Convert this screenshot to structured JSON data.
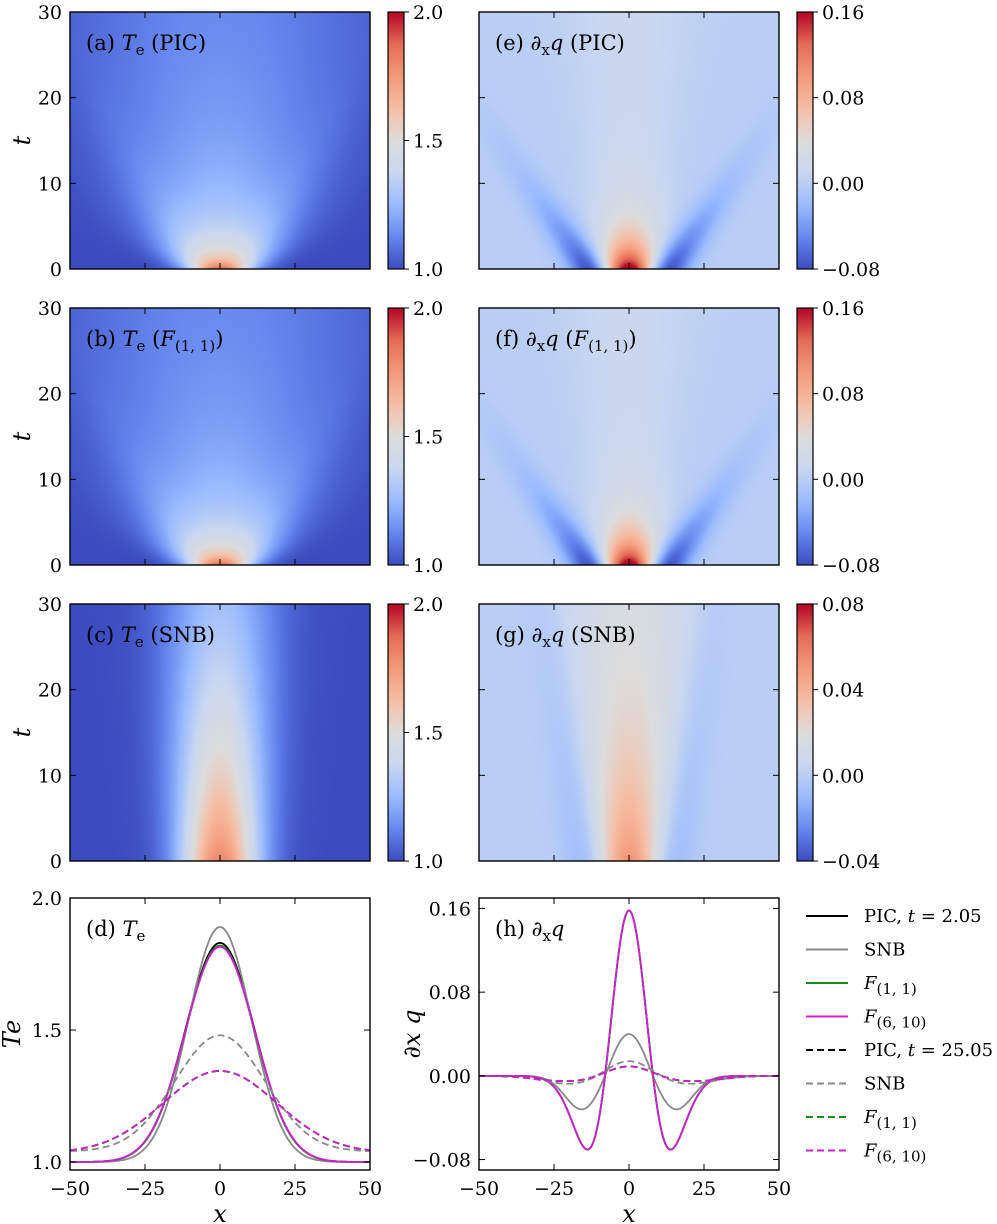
{
  "chart_data": [
    {
      "panel": "a",
      "type": "heatmap",
      "title": "(a) T_e (PIC)",
      "title_parts": [
        "(a) ",
        "T",
        "e",
        " (PIC)"
      ],
      "field": "Te",
      "model": "PIC",
      "xlim": [
        -50,
        50
      ],
      "ylim": [
        0,
        30
      ],
      "yticks": [
        "0",
        "10",
        "20",
        "30"
      ],
      "ylabel": "t",
      "colorbar": {
        "range": [
          1.0,
          2.0
        ],
        "ticks": [
          "1.0",
          "1.5",
          "2.0"
        ]
      }
    },
    {
      "panel": "b",
      "type": "heatmap",
      "title": "(b) T_e (F(1,1))",
      "title_parts": [
        "(b) ",
        "T",
        "e",
        " (",
        "F",
        "(1, 1)",
        ")"
      ],
      "field": "Te",
      "model": "F11",
      "xlim": [
        -50,
        50
      ],
      "ylim": [
        0,
        30
      ],
      "yticks": [
        "0",
        "10",
        "20",
        "30"
      ],
      "ylabel": "t",
      "colorbar": {
        "range": [
          1.0,
          2.0
        ],
        "ticks": [
          "1.0",
          "1.5",
          "2.0"
        ]
      }
    },
    {
      "panel": "c",
      "type": "heatmap",
      "title": "(c) T_e (SNB)",
      "title_parts": [
        "(c) ",
        "T",
        "e",
        " (SNB)"
      ],
      "field": "Te",
      "model": "SNB",
      "xlim": [
        -50,
        50
      ],
      "ylim": [
        0,
        30
      ],
      "yticks": [
        "0",
        "10",
        "20",
        "30"
      ],
      "ylabel": "t",
      "colorbar": {
        "range": [
          1.0,
          2.0
        ],
        "ticks": [
          "1.0",
          "1.5",
          "2.0"
        ]
      }
    },
    {
      "panel": "e",
      "type": "heatmap",
      "title": "(e) ∂_x q (PIC)",
      "title_parts": [
        "(e) ∂",
        "x",
        "q",
        " (PIC)"
      ],
      "field": "dq",
      "model": "PIC",
      "xlim": [
        -50,
        50
      ],
      "ylim": [
        0,
        30
      ],
      "colorbar": {
        "range": [
          -0.08,
          0.16
        ],
        "ticks": [
          "−0.08",
          "0.00",
          "0.08",
          "0.16"
        ]
      }
    },
    {
      "panel": "f",
      "type": "heatmap",
      "title": "(f) ∂_x q (F(1,1))",
      "title_parts": [
        "(f) ∂",
        "x",
        "q",
        " (",
        "F",
        "(1, 1)",
        ")"
      ],
      "field": "dq",
      "model": "F11",
      "xlim": [
        -50,
        50
      ],
      "ylim": [
        0,
        30
      ],
      "colorbar": {
        "range": [
          -0.08,
          0.16
        ],
        "ticks": [
          "−0.08",
          "0.00",
          "0.08",
          "0.16"
        ]
      }
    },
    {
      "panel": "g",
      "type": "heatmap",
      "title": "(g) ∂_x q (SNB)",
      "title_parts": [
        "(g) ∂",
        "x",
        "q",
        " (SNB)"
      ],
      "field": "dq",
      "model": "SNB",
      "xlim": [
        -50,
        50
      ],
      "ylim": [
        0,
        30
      ],
      "colorbar": {
        "range": [
          -0.04,
          0.08
        ],
        "ticks": [
          "−0.04",
          "0.00",
          "0.04",
          "0.08"
        ]
      }
    },
    {
      "panel": "d",
      "type": "line",
      "title": "(d) T_e",
      "title_parts": [
        "(d) ",
        "T",
        "e"
      ],
      "xlim": [
        -50,
        50
      ],
      "ylim": [
        0.97,
        2.0
      ],
      "xticks": [
        "−50",
        "−25",
        "0",
        "25",
        "50"
      ],
      "yticks": [
        1.0,
        1.5,
        2.0
      ],
      "ytick_labels": [
        "1.0",
        "1.5",
        "2.0"
      ],
      "xlabel": "x",
      "ylabel": "T_e",
      "series": [
        {
          "name": "PIC, t = 2.05",
          "color": "#000000",
          "dash": "solid",
          "peak": 1.83,
          "base": 1.0,
          "width": 11.5
        },
        {
          "name": "SNB",
          "color": "#888888",
          "dash": "solid",
          "peak": 1.89,
          "base": 1.0,
          "width": 10.5
        },
        {
          "name": "F(1,1)",
          "color": "#1a8c1a",
          "dash": "solid",
          "peak": 1.82,
          "base": 1.0,
          "width": 11.5
        },
        {
          "name": "F(6,10)",
          "color": "#cc22cc",
          "dash": "solid",
          "peak": 1.815,
          "base": 1.0,
          "width": 11.6
        },
        {
          "name": "PIC, t = 25.05",
          "color": "#000000",
          "dash": "dashed",
          "peak": 1.345,
          "base": 1.035,
          "width": 19.0
        },
        {
          "name": "SNB",
          "color": "#888888",
          "dash": "dashed",
          "peak": 1.48,
          "base": 1.04,
          "width": 15.0
        },
        {
          "name": "F(1,1)",
          "color": "#1a8c1a",
          "dash": "dashed",
          "peak": 1.345,
          "base": 1.035,
          "width": 19.0
        },
        {
          "name": "F(6,10)",
          "color": "#cc22cc",
          "dash": "dashed",
          "peak": 1.345,
          "base": 1.035,
          "width": 19.0
        }
      ]
    },
    {
      "panel": "h",
      "type": "line",
      "title": "(h) ∂_x q",
      "title_parts": [
        "(h) ∂",
        "x",
        "q"
      ],
      "xlim": [
        -50,
        50
      ],
      "ylim": [
        -0.09,
        0.17
      ],
      "xticks": [
        "−50",
        "−25",
        "0",
        "25",
        "50"
      ],
      "yticks": [
        -0.08,
        0.0,
        0.08,
        0.16
      ],
      "ytick_labels": [
        "−0.08",
        "0.00",
        "0.08",
        "0.16"
      ],
      "xlabel": "x",
      "ylabel": "∂_x q",
      "series": [
        {
          "name": "PIC, t = 2.05",
          "color": "#000000",
          "dash": "solid",
          "amp": 0.158,
          "width": 8.0
        },
        {
          "name": "SNB",
          "color": "#888888",
          "dash": "solid",
          "amp": 0.04,
          "width": 8.5,
          "tail": -0.015,
          "tail_center": 17.0,
          "tail_width": 7.0
        },
        {
          "name": "F(1,1)",
          "color": "#1a8c1a",
          "dash": "solid",
          "amp": 0.158,
          "width": 8.0
        },
        {
          "name": "F(6,10)",
          "color": "#cc22cc",
          "dash": "solid",
          "amp": 0.158,
          "width": 8.0
        },
        {
          "name": "PIC, t = 25.05",
          "color": "#000000",
          "dash": "dashed",
          "amp": 0.009,
          "width": 11.0,
          "tail": -0.002,
          "tail_center": 28.0,
          "tail_width": 10.0
        },
        {
          "name": "SNB",
          "color": "#888888",
          "dash": "dashed",
          "amp": 0.014,
          "width": 11.0,
          "tail": -0.002,
          "tail_center": 26.0,
          "tail_width": 10.0
        },
        {
          "name": "F(1,1)",
          "color": "#1a8c1a",
          "dash": "dashed",
          "amp": 0.009,
          "width": 11.0,
          "tail": -0.002,
          "tail_center": 28.0,
          "tail_width": 10.0
        },
        {
          "name": "F(6,10)",
          "color": "#cc22cc",
          "dash": "dashed",
          "amp": 0.009,
          "width": 11.0,
          "tail": -0.002,
          "tail_center": 28.0,
          "tail_width": 10.0
        }
      ]
    }
  ],
  "legend": {
    "placement": "right of panel h",
    "entries": [
      {
        "parts": [
          "PIC,  ",
          "t",
          " = 2.05"
        ],
        "color": "#000000",
        "dash": "solid"
      },
      {
        "parts": [
          "SNB"
        ],
        "color": "#888888",
        "dash": "solid"
      },
      {
        "parts": [
          "F",
          "(1, 1)"
        ],
        "color": "#1a8c1a",
        "dash": "solid"
      },
      {
        "parts": [
          "F",
          "(6, 10)"
        ],
        "color": "#cc22cc",
        "dash": "solid"
      },
      {
        "parts": [
          "PIC,  ",
          "t",
          " = 25.05"
        ],
        "color": "#000000",
        "dash": "dashed"
      },
      {
        "parts": [
          "SNB"
        ],
        "color": "#888888",
        "dash": "dashed"
      },
      {
        "parts": [
          "F",
          "(1, 1)"
        ],
        "color": "#1a8c1a",
        "dash": "dashed"
      },
      {
        "parts": [
          "F",
          "(6, 10)"
        ],
        "color": "#cc22cc",
        "dash": "dashed"
      }
    ]
  },
  "colormap": [
    "#3b4cc0",
    "#6788ee",
    "#9abbff",
    "#c9d7f0",
    "#dddcdc",
    "#f6bfa6",
    "#f49a7b",
    "#e36c55",
    "#b40426"
  ]
}
